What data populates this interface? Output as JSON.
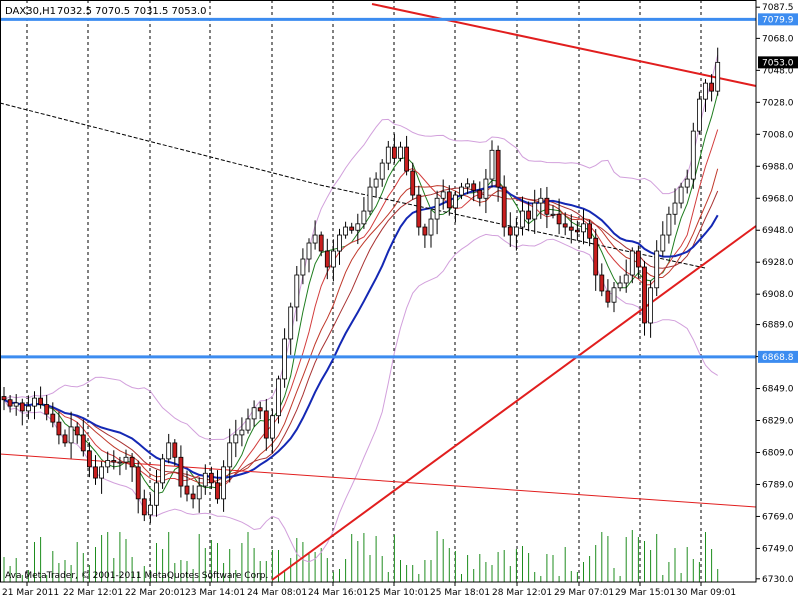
{
  "header": {
    "symbol": "DAX30,H1",
    "ohlc": "7032.5 7070.5 7031.5 7053.0"
  },
  "copyright": "Ava MetaTrader, © 2001-2011 MetaQuotes Software Corp.",
  "colors": {
    "background": "#ffffff",
    "bull_candle": "#ffffff",
    "bear_candle": "#c81e1e",
    "hline": "#3c8cf0",
    "trendline": "#e11e1e",
    "ma_fast": "#1e7d1e",
    "ma_mid": "#d23c3c",
    "ma_slow": "#1428b4",
    "bollinger": "#d2a0dc",
    "volume": "#1e8c1e",
    "grid": "#000000"
  },
  "chart_data": {
    "type": "candlestick",
    "title": "DAX30,H1",
    "ylim": [
      6728,
      7092
    ],
    "y_ticks": [
      "7087.5",
      "7068.0",
      "7048.0",
      "7028.0",
      "7008.0",
      "6988.0",
      "6968.0",
      "6948.0",
      "6928.0",
      "6908.0",
      "6889.0",
      "6869.0",
      "6849.0",
      "6829.0",
      "6809.0",
      "6789.0",
      "6769.0",
      "6749.0",
      "6730.0"
    ],
    "x_ticks": [
      "21 Mar 2011",
      "22 Mar 12:01",
      "22 Mar 20:01",
      "23 Mar 14:01",
      "24 Mar 08:01",
      "24 Mar 16:01",
      "25 Mar 10:01",
      "25 Mar 18:01",
      "28 Mar 12:01",
      "29 Mar 07:01",
      "29 Mar 15:01",
      "30 Mar 09:01"
    ],
    "price_tags": [
      {
        "label": "7079.9",
        "value": 7079.9,
        "style": "line"
      },
      {
        "label": "7053.0",
        "value": 7053.0,
        "style": "current"
      },
      {
        "label": "6868.8",
        "value": 6868.8,
        "style": "line"
      }
    ],
    "horizontal_lines": [
      7079.9,
      6868.8
    ],
    "closes": [
      6842,
      6838,
      6840,
      6835,
      6838,
      6843,
      6839,
      6833,
      6828,
      6820,
      6815,
      6825,
      6820,
      6810,
      6800,
      6793,
      6800,
      6804,
      6803,
      6803,
      6806,
      6800,
      6780,
      6770,
      6776,
      6790,
      6805,
      6815,
      6806,
      6788,
      6783,
      6780,
      6788,
      6796,
      6790,
      6780,
      6800,
      6815,
      6820,
      6823,
      6830,
      6837,
      6835,
      6818,
      6832,
      6855,
      6880,
      6900,
      6920,
      6930,
      6940,
      6945,
      6935,
      6925,
      6935,
      6945,
      6950,
      6948,
      6952,
      6960,
      6975,
      6980,
      6990,
      7000,
      6993,
      7000,
      6985,
      6970,
      6950,
      6945,
      6955,
      6968,
      6972,
      6962,
      6970,
      6975,
      6977,
      6973,
      6968,
      6980,
      6998,
      6975,
      6950,
      6945,
      6950,
      6960,
      6955,
      6965,
      6968,
      6958,
      6958,
      6952,
      6950,
      6948,
      6947,
      6952,
      6943,
      6920,
      6910,
      6903,
      6912,
      6915,
      6920,
      6935,
      6925,
      6890,
      6912,
      6935,
      6945,
      6958,
      6965,
      6975,
      6980,
      7010,
      7030,
      7040,
      7035,
      7053
    ]
  }
}
